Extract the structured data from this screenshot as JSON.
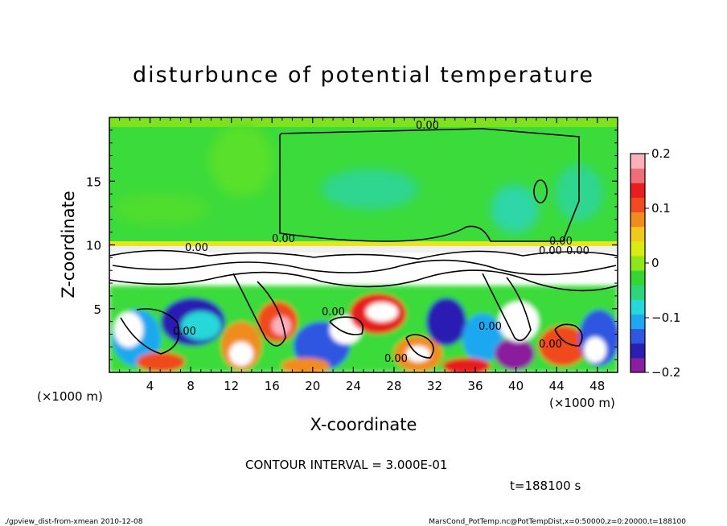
{
  "chart_data": {
    "type": "heatmap",
    "title": "disturbunce of potential temperature",
    "xlabel": "X-coordinate",
    "ylabel": "Z-coordinate",
    "x_unit": "(×1000 m)",
    "y_unit": "(×1000 m)",
    "xlim": [
      0,
      50
    ],
    "ylim": [
      0,
      20
    ],
    "x_ticks": [
      "4",
      "8",
      "12",
      "16",
      "20",
      "24",
      "28",
      "32",
      "36",
      "40",
      "44",
      "48"
    ],
    "x_tick_values": [
      4,
      8,
      12,
      16,
      20,
      24,
      28,
      32,
      36,
      40,
      44,
      48
    ],
    "y_ticks": [
      "5",
      "10",
      "15"
    ],
    "y_tick_values": [
      5,
      10,
      15
    ],
    "color_range": [
      -0.2,
      0.2
    ],
    "colorbar_ticks": [
      "0.2",
      "0.1",
      "0",
      "−0.1",
      "−0.2"
    ],
    "colorbar_tick_values": [
      0.2,
      0.1,
      0,
      -0.1,
      -0.2
    ],
    "colorbar_colors": [
      "#8B1E9E",
      "#2C1DB3",
      "#2F57E0",
      "#1FA8F0",
      "#27D8D8",
      "#2ED67A",
      "#33D633",
      "#8FE61A",
      "#D8EC14",
      "#F0C81E",
      "#F08C1E",
      "#F04A1E",
      "#E81E1E",
      "#F06E7A",
      "#FBB0BC"
    ],
    "contour_labels": [
      "0.00",
      "0.00",
      "0.00",
      "0.00",
      "0.00",
      "0.00",
      "0.00",
      "0.00",
      "0.00",
      "0.00",
      "0.00"
    ],
    "contour_interval_text": "CONTOUR INTERVAL = 3.000E-01",
    "time_text": "t=188100 s"
  },
  "footer": {
    "left": "./gpview_dist-from-xmean  2010-12-08",
    "right": "MarsCond_PotTemp.nc@PotTempDist,x=0:50000,z=0:20000,t=188100"
  }
}
